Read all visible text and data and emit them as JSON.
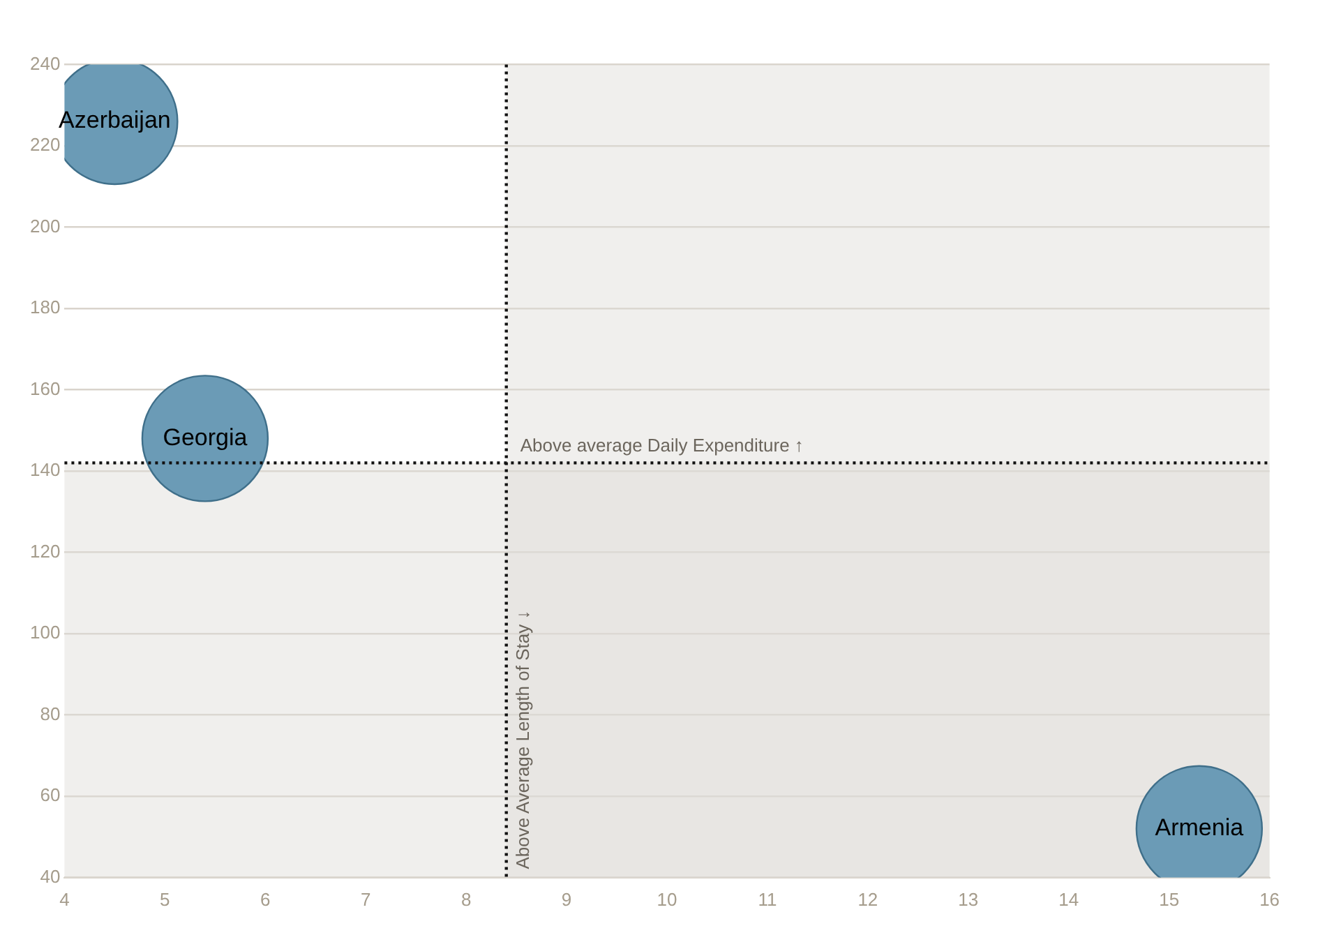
{
  "chart_data": {
    "type": "bubble",
    "xlim": [
      4,
      16
    ],
    "xticks": [
      4,
      5,
      6,
      7,
      8,
      9,
      10,
      11,
      12,
      13,
      14,
      15,
      16
    ],
    "ylim": [
      40,
      240
    ],
    "yticks": [
      40,
      60,
      80,
      100,
      120,
      140,
      160,
      180,
      200,
      220,
      240
    ],
    "grid": "y",
    "legend": false,
    "series": [
      {
        "name": "Azerbaijan",
        "color": "#6b9bb6",
        "x": [
          4.5
        ],
        "values": [
          226
        ],
        "sizes": [
          1
        ]
      },
      {
        "name": "Georgia",
        "color": "#6b9bb6",
        "x": [
          5.4
        ],
        "values": [
          148
        ],
        "sizes": [
          1
        ]
      },
      {
        "name": "Armenia",
        "color": "#6b9bb6",
        "x": [
          15.3
        ],
        "values": [
          52
        ],
        "sizes": [
          1
        ]
      }
    ],
    "ref_lines": [
      {
        "axis": "x",
        "value": 8.4,
        "label": "Above Average Length of Stay ↓",
        "line_style": "dotted",
        "color": "#111111"
      },
      {
        "axis": "y",
        "value": 142,
        "label": "Above average Daily Expenditure ↑",
        "line_style": "dotted",
        "color": "#111111"
      }
    ],
    "bands": [
      {
        "axis": "x",
        "from": 8.4,
        "to": 16,
        "color": "#dedbd6"
      },
      {
        "axis": "y",
        "from": 40,
        "to": 142,
        "color": "#dedbd6"
      }
    ]
  }
}
